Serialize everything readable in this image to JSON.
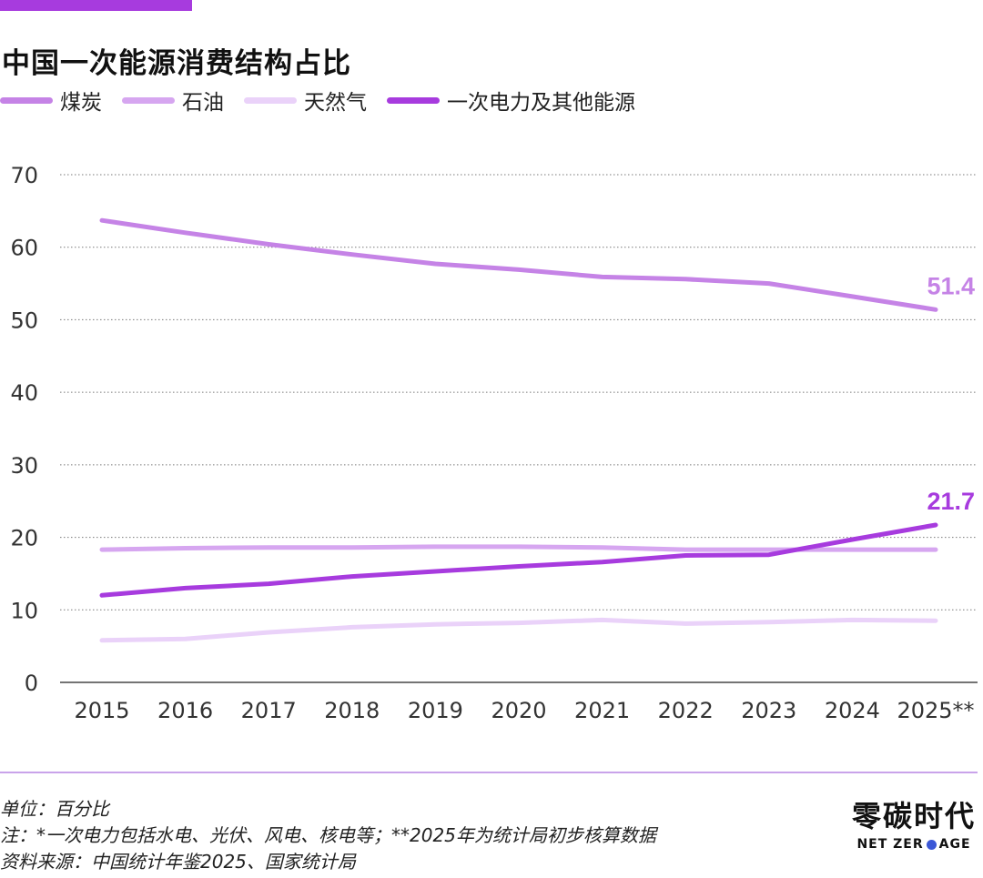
{
  "chart_data": {
    "type": "line",
    "title": "中国一次能源消费结构占比",
    "categories": [
      "2015",
      "2016",
      "2017",
      "2018",
      "2019",
      "2020",
      "2021",
      "2022",
      "2023",
      "2024",
      "2025**"
    ],
    "series": [
      {
        "name": "煤炭",
        "color": "#c583e6",
        "values": [
          63.7,
          62.0,
          60.4,
          59.0,
          57.7,
          56.9,
          55.9,
          55.6,
          55.0,
          53.2,
          51.4
        ],
        "end_label": "51.4",
        "end_label_color": "#c583e6"
      },
      {
        "name": "石油",
        "color": "#d6a6f0",
        "values": [
          18.3,
          18.5,
          18.6,
          18.6,
          18.7,
          18.7,
          18.6,
          18.3,
          18.3,
          18.3,
          18.3
        ],
        "end_label": null
      },
      {
        "name": "天然气",
        "color": "#ead2f9",
        "values": [
          5.8,
          6.0,
          6.9,
          7.6,
          8.0,
          8.2,
          8.6,
          8.1,
          8.3,
          8.6,
          8.5
        ],
        "end_label": null
      },
      {
        "name": "一次电力及其他能源",
        "color": "#a73bde",
        "values": [
          12.0,
          13.0,
          13.6,
          14.6,
          15.3,
          16.0,
          16.6,
          17.5,
          17.6,
          19.7,
          21.7
        ],
        "end_label": "21.7",
        "end_label_color": "#a73bde"
      }
    ],
    "yticks": [
      0,
      10,
      20,
      30,
      40,
      50,
      60,
      70
    ],
    "ylim": [
      0,
      70
    ],
    "grid": true
  },
  "footer": {
    "unit": "单位：百分比",
    "note": "注：*一次电力包括水电、光伏、风电、核电等；**2025年为统计局初步核算数据",
    "source": "资料来源：中国统计年鉴2025、国家统计局"
  },
  "brand": {
    "cn": "零碳时代",
    "en_part1": "NET ZER",
    "en_part2": "AGE"
  },
  "colors": {
    "accent": "#a73bde",
    "divider": "#c9a3ea"
  }
}
